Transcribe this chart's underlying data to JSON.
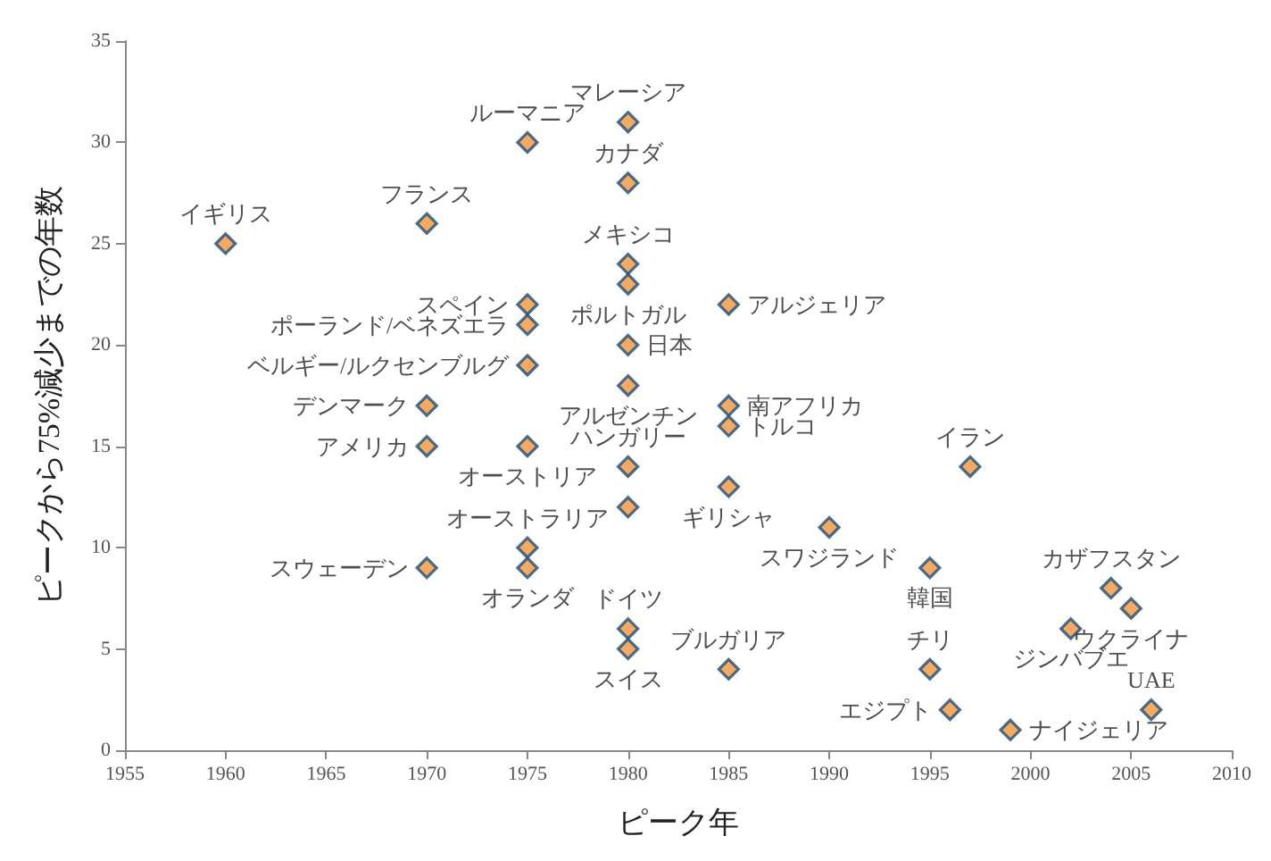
{
  "chart_data": {
    "type": "scatter",
    "xlabel": "ピーク年",
    "ylabel": "ピークから75%減少までの年数",
    "x": [
      1960,
      1970,
      1975,
      1980,
      1980,
      1980,
      1980,
      1985,
      1975,
      1975,
      1975,
      1980,
      1970,
      1980,
      1985,
      1985,
      1970,
      1975,
      1980,
      1980,
      1985,
      1990,
      1995,
      1997,
      1975,
      1975,
      1970,
      1980,
      1980,
      1985,
      1995,
      1996,
      1999,
      2002,
      2004,
      2005,
      2006
    ],
    "series": [
      {
        "color": "#f0963c",
        "values": [
          25,
          26,
          30,
          31,
          28,
          24,
          23,
          22,
          22,
          21,
          19,
          20,
          17,
          18,
          17,
          16,
          15,
          15,
          14,
          12,
          13,
          11,
          9,
          14,
          10,
          9,
          9,
          6,
          5,
          4,
          4,
          2,
          1,
          6,
          8,
          7,
          2
        ]
      }
    ],
    "marker": "diamond",
    "grid": false,
    "xlim": [
      1955,
      2010
    ],
    "xticks": [
      1955,
      1960,
      1965,
      1970,
      1975,
      1980,
      1985,
      1990,
      1995,
      2000,
      2005,
      2010
    ],
    "ylim": [
      0,
      35
    ],
    "yticks": [
      0,
      5,
      10,
      15,
      20,
      25,
      30,
      35
    ],
    "annotations": [
      {
        "text": "イギリス",
        "x": 1960,
        "y": 25
      },
      {
        "text": "フランス",
        "x": 1970,
        "y": 26
      },
      {
        "text": "ルーマニア",
        "x": 1975,
        "y": 30
      },
      {
        "text": "マレーシア",
        "x": 1980,
        "y": 31
      },
      {
        "text": "カナダ",
        "x": 1980,
        "y": 28
      },
      {
        "text": "メキシコ",
        "x": 1980,
        "y": 24
      },
      {
        "text": "ポルトガル",
        "x": 1980,
        "y": 23
      },
      {
        "text": "アルジェリア",
        "x": 1985,
        "y": 22
      },
      {
        "text": "スペイン",
        "x": 1975,
        "y": 22
      },
      {
        "text": "ポーランド/ベネズエラ",
        "x": 1975,
        "y": 21
      },
      {
        "text": "ベルギー/ルクセンブルグ",
        "x": 1975,
        "y": 19
      },
      {
        "text": "日本",
        "x": 1980,
        "y": 20
      },
      {
        "text": "デンマーク",
        "x": 1970,
        "y": 17
      },
      {
        "text": "アルゼンチン",
        "x": 1980,
        "y": 18
      },
      {
        "text": "南アフリカ",
        "x": 1985,
        "y": 17
      },
      {
        "text": "トルコ",
        "x": 1985,
        "y": 16
      },
      {
        "text": "アメリカ",
        "x": 1970,
        "y": 15
      },
      {
        "text": "オーストリア",
        "x": 1975,
        "y": 15
      },
      {
        "text": "ハンガリー",
        "x": 1980,
        "y": 14
      },
      {
        "text": "ギリシャ",
        "x": 1985,
        "y": 13
      },
      {
        "text": "スワジランド",
        "x": 1990,
        "y": 11
      },
      {
        "text": "韓国",
        "x": 1995,
        "y": 9
      },
      {
        "text": "イラン",
        "x": 1997,
        "y": 14
      },
      {
        "text": "オーストラリア",
        "x": 1975,
        "y": 10
      },
      {
        "text": "オランダ",
        "x": 1975,
        "y": 9
      },
      {
        "text": "スウェーデン",
        "x": 1970,
        "y": 9
      },
      {
        "text": "ドイツ",
        "x": 1980,
        "y": 6
      },
      {
        "text": "スイス",
        "x": 1980,
        "y": 5
      },
      {
        "text": "ブルガリア",
        "x": 1985,
        "y": 4
      },
      {
        "text": "チリ",
        "x": 1995,
        "y": 4
      },
      {
        "text": "エジプト",
        "x": 1996,
        "y": 2
      },
      {
        "text": "ナイジェリア",
        "x": 1999,
        "y": 1
      },
      {
        "text": "ジンバブエ",
        "x": 2002,
        "y": 6
      },
      {
        "text": "カザフスタン",
        "x": 2004,
        "y": 8
      },
      {
        "text": "ウクライナ",
        "x": 2005,
        "y": 7
      },
      {
        "text": "UAE",
        "x": 2006,
        "y": 2
      }
    ]
  }
}
